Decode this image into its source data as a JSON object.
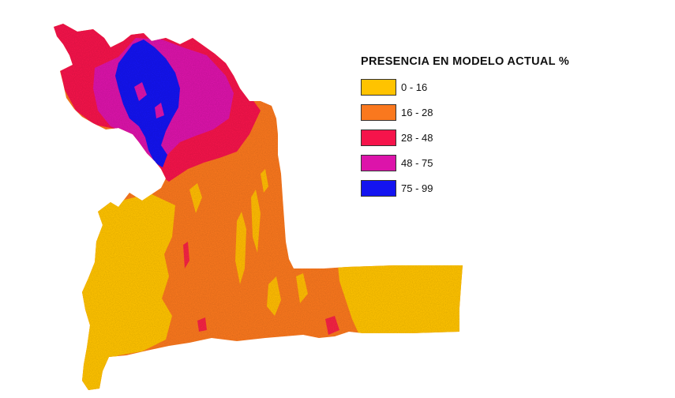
{
  "legend": {
    "title": "PRESENCIA EN MODELO ACTUAL %",
    "items": [
      {
        "label": "0 - 16",
        "color": "#FFC300"
      },
      {
        "label": "16 - 28",
        "color": "#FA781E"
      },
      {
        "label": "28 - 48",
        "color": "#F5144B"
      },
      {
        "label": "48 - 75",
        "color": "#DC14AA"
      },
      {
        "label": "75 - 99",
        "color": "#1414F0"
      }
    ]
  }
}
